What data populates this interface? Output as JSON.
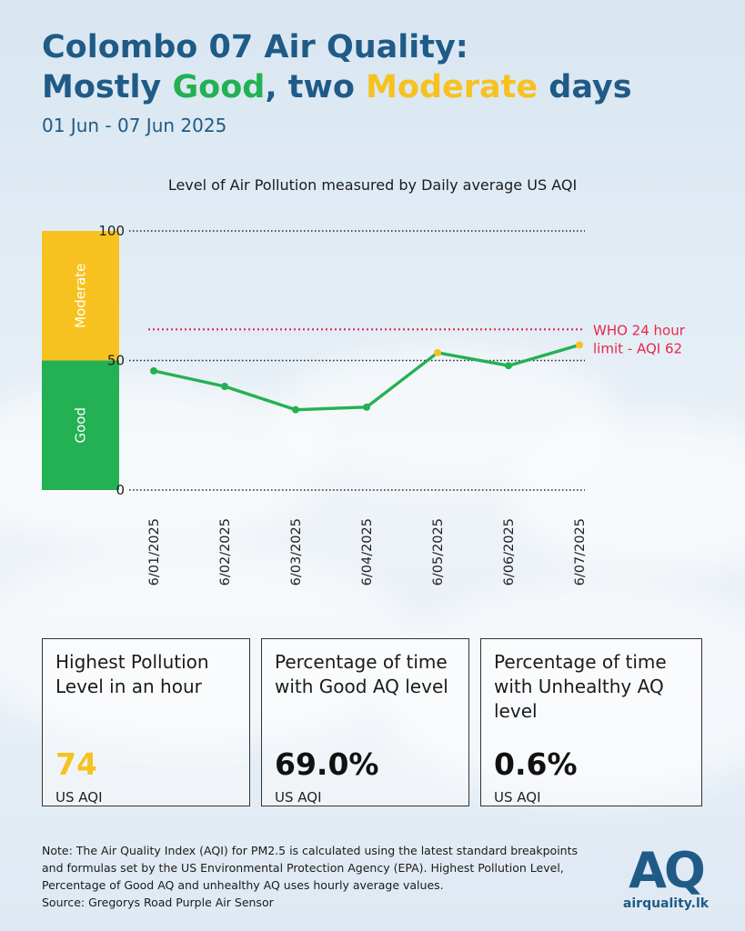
{
  "title": {
    "line1": "Colombo 07 Air Quality:",
    "line2_part1": "Mostly ",
    "line2_good": "Good",
    "line2_part2": ", two ",
    "line2_moderate": "Moderate",
    "line2_part3": " days"
  },
  "subtitle": "01 Jun - 07 Jun 2025",
  "colors": {
    "good": "#23b153",
    "moderate": "#f7c21f",
    "who": "#e8274b",
    "title": "#1f5b86"
  },
  "chart_data": {
    "type": "line",
    "title": "Level of Air Pollution measured by Daily average US AQI",
    "x": [
      "6/01/2025",
      "6/02/2025",
      "6/03/2025",
      "6/04/2025",
      "6/05/2025",
      "6/06/2025",
      "6/07/2025"
    ],
    "series": [
      {
        "values": [
          46,
          40,
          31,
          32,
          53,
          48,
          56
        ]
      }
    ],
    "ylim": [
      0,
      100
    ],
    "yticks": [
      "0",
      "50",
      "100"
    ],
    "grid": true,
    "bands": [
      {
        "label": "Good",
        "from": 0,
        "to": 50,
        "color": "#23b153"
      },
      {
        "label": "Moderate",
        "from": 50,
        "to": 100,
        "color": "#f7c21f"
      }
    ],
    "reference_line": {
      "value": 62,
      "label_line1": "WHO 24 hour",
      "label_line2": "limit - AQI 62",
      "color": "#e8274b"
    }
  },
  "cards": [
    {
      "label": "Highest Pollution Level in an hour",
      "value": "74",
      "unit": "US AQI"
    },
    {
      "label": "Percentage of time with Good AQ level",
      "value": "69.0%",
      "unit": "US AQI"
    },
    {
      "label": "Percentage of time with Unhealthy AQ level",
      "value": "0.6%",
      "unit": "US AQI"
    }
  ],
  "note": {
    "line1": "Note: The Air Quality Index (AQI) for PM2.5 is calculated using the latest standard breakpoints",
    "line2": "and formulas set by the US Environmental Protection Agency (EPA). Highest Pollution Level,",
    "line3": "Percentage of Good AQ and unhealthy AQ uses hourly average values.",
    "line4": "Source: Gregorys Road Purple Air Sensor"
  },
  "logo": {
    "mark": "AQ",
    "text": "airquality.lk"
  }
}
